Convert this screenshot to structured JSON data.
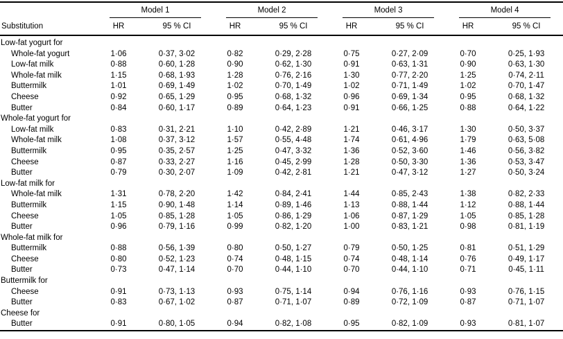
{
  "colors": {
    "text": "#000000",
    "background": "#ffffff",
    "rule": "#000000"
  },
  "table": {
    "column_header": "Substitution",
    "models": [
      "Model 1",
      "Model 2",
      "Model 3",
      "Model 4"
    ],
    "sub_headers": {
      "hr": "HR",
      "ci": "95 % CI"
    },
    "groups": [
      {
        "label": "Low-fat yogurt for",
        "rows": [
          {
            "label": "Whole-fat yogurt",
            "cells": [
              "1·06",
              "0·37, 3·02",
              "0·82",
              "0·29, 2·28",
              "0·75",
              "0·27, 2·09",
              "0·70",
              "0·25, 1·93"
            ]
          },
          {
            "label": "Low-fat milk",
            "cells": [
              "0·88",
              "0·60, 1·28",
              "0·90",
              "0·62, 1·30",
              "0·91",
              "0·63, 1·31",
              "0·90",
              "0·63, 1·30"
            ]
          },
          {
            "label": "Whole-fat milk",
            "cells": [
              "1·15",
              "0·68, 1·93",
              "1·28",
              "0·76, 2·16",
              "1·30",
              "0·77, 2·20",
              "1·25",
              "0·74, 2·11"
            ]
          },
          {
            "label": "Buttermilk",
            "cells": [
              "1·01",
              "0·69, 1·49",
              "1·02",
              "0·70, 1·49",
              "1·02",
              "0·71, 1·49",
              "1·02",
              "0·70, 1·47"
            ]
          },
          {
            "label": "Cheese",
            "cells": [
              "0·92",
              "0·65, 1·29",
              "0·95",
              "0·68, 1·32",
              "0·96",
              "0·69, 1·34",
              "0·95",
              "0·68, 1·32"
            ]
          },
          {
            "label": "Butter",
            "cells": [
              "0·84",
              "0·60, 1·17",
              "0·89",
              "0·64, 1·23",
              "0·91",
              "0·66, 1·25",
              "0·88",
              "0·64, 1·22"
            ]
          }
        ]
      },
      {
        "label": "Whole-fat yogurt for",
        "rows": [
          {
            "label": "Low-fat milk",
            "cells": [
              "0·83",
              "0·31, 2·21",
              "1·10",
              "0·42, 2·89",
              "1·21",
              "0·46, 3·17",
              "1·30",
              "0·50, 3·37"
            ]
          },
          {
            "label": "Whole-fat milk",
            "cells": [
              "1·08",
              "0·37, 3·12",
              "1·57",
              "0·55, 4·48",
              "1·74",
              "0·61, 4·96",
              "1·79",
              "0·63, 5·08"
            ]
          },
          {
            "label": "Buttermilk",
            "cells": [
              "0·95",
              "0·35, 2·57",
              "1·25",
              "0·47, 3·32",
              "1·36",
              "0·52, 3·60",
              "1·46",
              "0·56, 3·82"
            ]
          },
          {
            "label": "Cheese",
            "cells": [
              "0·87",
              "0·33, 2·27",
              "1·16",
              "0·45, 2·99",
              "1·28",
              "0·50, 3·30",
              "1·36",
              "0·53, 3·47"
            ]
          },
          {
            "label": "Butter",
            "cells": [
              "0·79",
              "0·30, 2·07",
              "1·09",
              "0·42, 2·81",
              "1·21",
              "0·47, 3·12",
              "1·27",
              "0·50, 3·24"
            ]
          }
        ]
      },
      {
        "label": "Low-fat milk for",
        "rows": [
          {
            "label": "Whole-fat milk",
            "cells": [
              "1·31",
              "0·78, 2·20",
              "1·42",
              "0·84, 2·41",
              "1·44",
              "0·85, 2·43",
              "1·38",
              "0·82, 2·33"
            ]
          },
          {
            "label": "Buttermilk",
            "cells": [
              "1·15",
              "0·90, 1·48",
              "1·14",
              "0·89, 1·46",
              "1·13",
              "0·88, 1·44",
              "1·12",
              "0·88, 1·44"
            ]
          },
          {
            "label": "Cheese",
            "cells": [
              "1·05",
              "0·85, 1·28",
              "1·05",
              "0·86, 1·29",
              "1·06",
              "0·87, 1·29",
              "1·05",
              "0·85, 1·28"
            ]
          },
          {
            "label": "Butter",
            "cells": [
              "0·96",
              "0·79, 1·16",
              "0·99",
              "0·82, 1·20",
              "1·00",
              "0·83, 1·21",
              "0·98",
              "0·81, 1·19"
            ]
          }
        ]
      },
      {
        "label": "Whole-fat milk for",
        "rows": [
          {
            "label": "Buttermilk",
            "cells": [
              "0·88",
              "0·56, 1·39",
              "0·80",
              "0·50, 1·27",
              "0·79",
              "0·50, 1·25",
              "0·81",
              "0·51, 1·29"
            ]
          },
          {
            "label": "Cheese",
            "cells": [
              "0·80",
              "0·52, 1·23",
              "0·74",
              "0·48, 1·15",
              "0·74",
              "0·48, 1·14",
              "0·76",
              "0·49, 1·17"
            ]
          },
          {
            "label": "Butter",
            "cells": [
              "0·73",
              "0·47, 1·14",
              "0·70",
              "0·44, 1·10",
              "0·70",
              "0·44, 1·10",
              "0·71",
              "0·45, 1·11"
            ]
          }
        ]
      },
      {
        "label": "Buttermilk for",
        "rows": [
          {
            "label": "Cheese",
            "cells": [
              "0·91",
              "0·73, 1·13",
              "0·93",
              "0·75, 1·14",
              "0·94",
              "0·76, 1·16",
              "0·93",
              "0·76, 1·15"
            ]
          },
          {
            "label": "Butter",
            "cells": [
              "0·83",
              "0·67, 1·02",
              "0·87",
              "0·71, 1·07",
              "0·89",
              "0·72, 1·09",
              "0·87",
              "0·71, 1·07"
            ]
          }
        ]
      },
      {
        "label": "Cheese for",
        "rows": [
          {
            "label": "Butter",
            "cells": [
              "0·91",
              "0·80, 1·05",
              "0·94",
              "0·82, 1·08",
              "0·95",
              "0·82, 1·09",
              "0·93",
              "0·81, 1·07"
            ]
          }
        ]
      }
    ]
  }
}
